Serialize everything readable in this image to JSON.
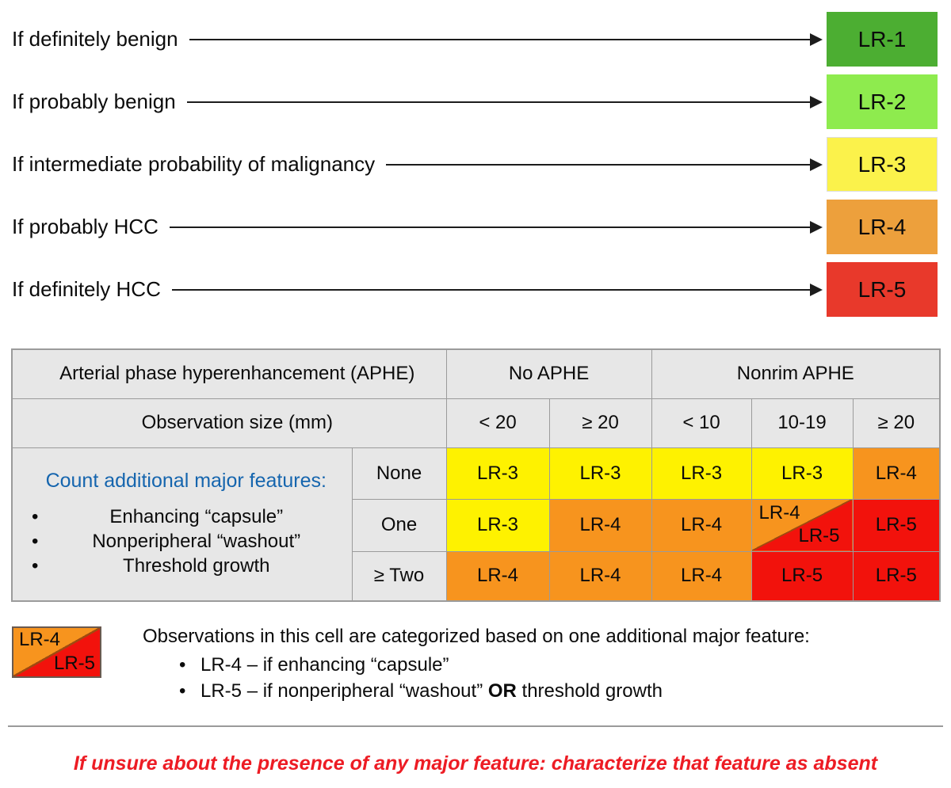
{
  "colors": {
    "boxGreen1": "#4CAE32",
    "boxGreen2": "#8EEB4E",
    "boxYellow": "#FBF24B",
    "boxOrange": "#EDA03C",
    "boxRed": "#E8392B",
    "cellYellow": "#FEF200",
    "cellOrange": "#F7941E",
    "cellRed": "#F2120C",
    "tableBg": "#E7E7E7",
    "gridline": "#9B9B9B",
    "blueText": "#1565AE",
    "warnRed": "#ED1C24",
    "diagLine": "#A04A10"
  },
  "flow": {
    "rows": [
      {
        "label": "If definitely benign",
        "category": "LR-1"
      },
      {
        "label": "If probably benign",
        "category": "LR-2"
      },
      {
        "label": "If intermediate probability of malignancy",
        "category": "LR-3"
      },
      {
        "label": "If probably HCC",
        "category": "LR-4"
      },
      {
        "label": "If definitely HCC",
        "category": "LR-5"
      }
    ]
  },
  "table": {
    "header": {
      "aphe_label": "Arterial phase hyperenhancement (APHE)",
      "no_aphe": "No APHE",
      "nonrim_aphe": "Nonrim APHE",
      "size_label": "Observation size (mm)",
      "size_cols": [
        "< 20",
        "≥ 20",
        "< 10",
        "10-19",
        "≥ 20"
      ]
    },
    "features": {
      "heading": "Count additional major features:",
      "bullets": [
        "Enhancing “capsule”",
        "Nonperipheral “washout”",
        "Threshold growth"
      ]
    },
    "rows": [
      {
        "count": "None",
        "cells": [
          {
            "text": "LR-3",
            "color": "yellow"
          },
          {
            "text": "LR-3",
            "color": "yellow"
          },
          {
            "text": "LR-3",
            "color": "yellow"
          },
          {
            "text": "LR-3",
            "color": "yellow"
          },
          {
            "text": "LR-4",
            "color": "orange"
          }
        ]
      },
      {
        "count": "One",
        "cells": [
          {
            "text": "LR-3",
            "color": "yellow"
          },
          {
            "text": "LR-4",
            "color": "orange"
          },
          {
            "text": "LR-4",
            "color": "orange"
          },
          {
            "split": true,
            "top": "LR-4",
            "bottom": "LR-5"
          },
          {
            "text": "LR-5",
            "color": "red"
          }
        ]
      },
      {
        "count": "≥ Two",
        "cells": [
          {
            "text": "LR-4",
            "color": "orange"
          },
          {
            "text": "LR-4",
            "color": "orange"
          },
          {
            "text": "LR-4",
            "color": "orange"
          },
          {
            "text": "LR-5",
            "color": "red"
          },
          {
            "text": "LR-5",
            "color": "red"
          }
        ]
      }
    ]
  },
  "legend": {
    "swatch_top": "LR-4",
    "swatch_bottom": "LR-5",
    "line1": "Observations in this cell are categorized based on one additional major feature:",
    "bullets": [
      {
        "pre": "LR-4 – if enhancing “capsule”",
        "bold": "",
        "post": ""
      },
      {
        "pre": "LR-5 – if nonperipheral “washout” ",
        "bold": "OR",
        "post": " threshold growth"
      }
    ]
  },
  "footer": {
    "warning": "If unsure about the presence of any major feature: characterize that feature as absent"
  }
}
